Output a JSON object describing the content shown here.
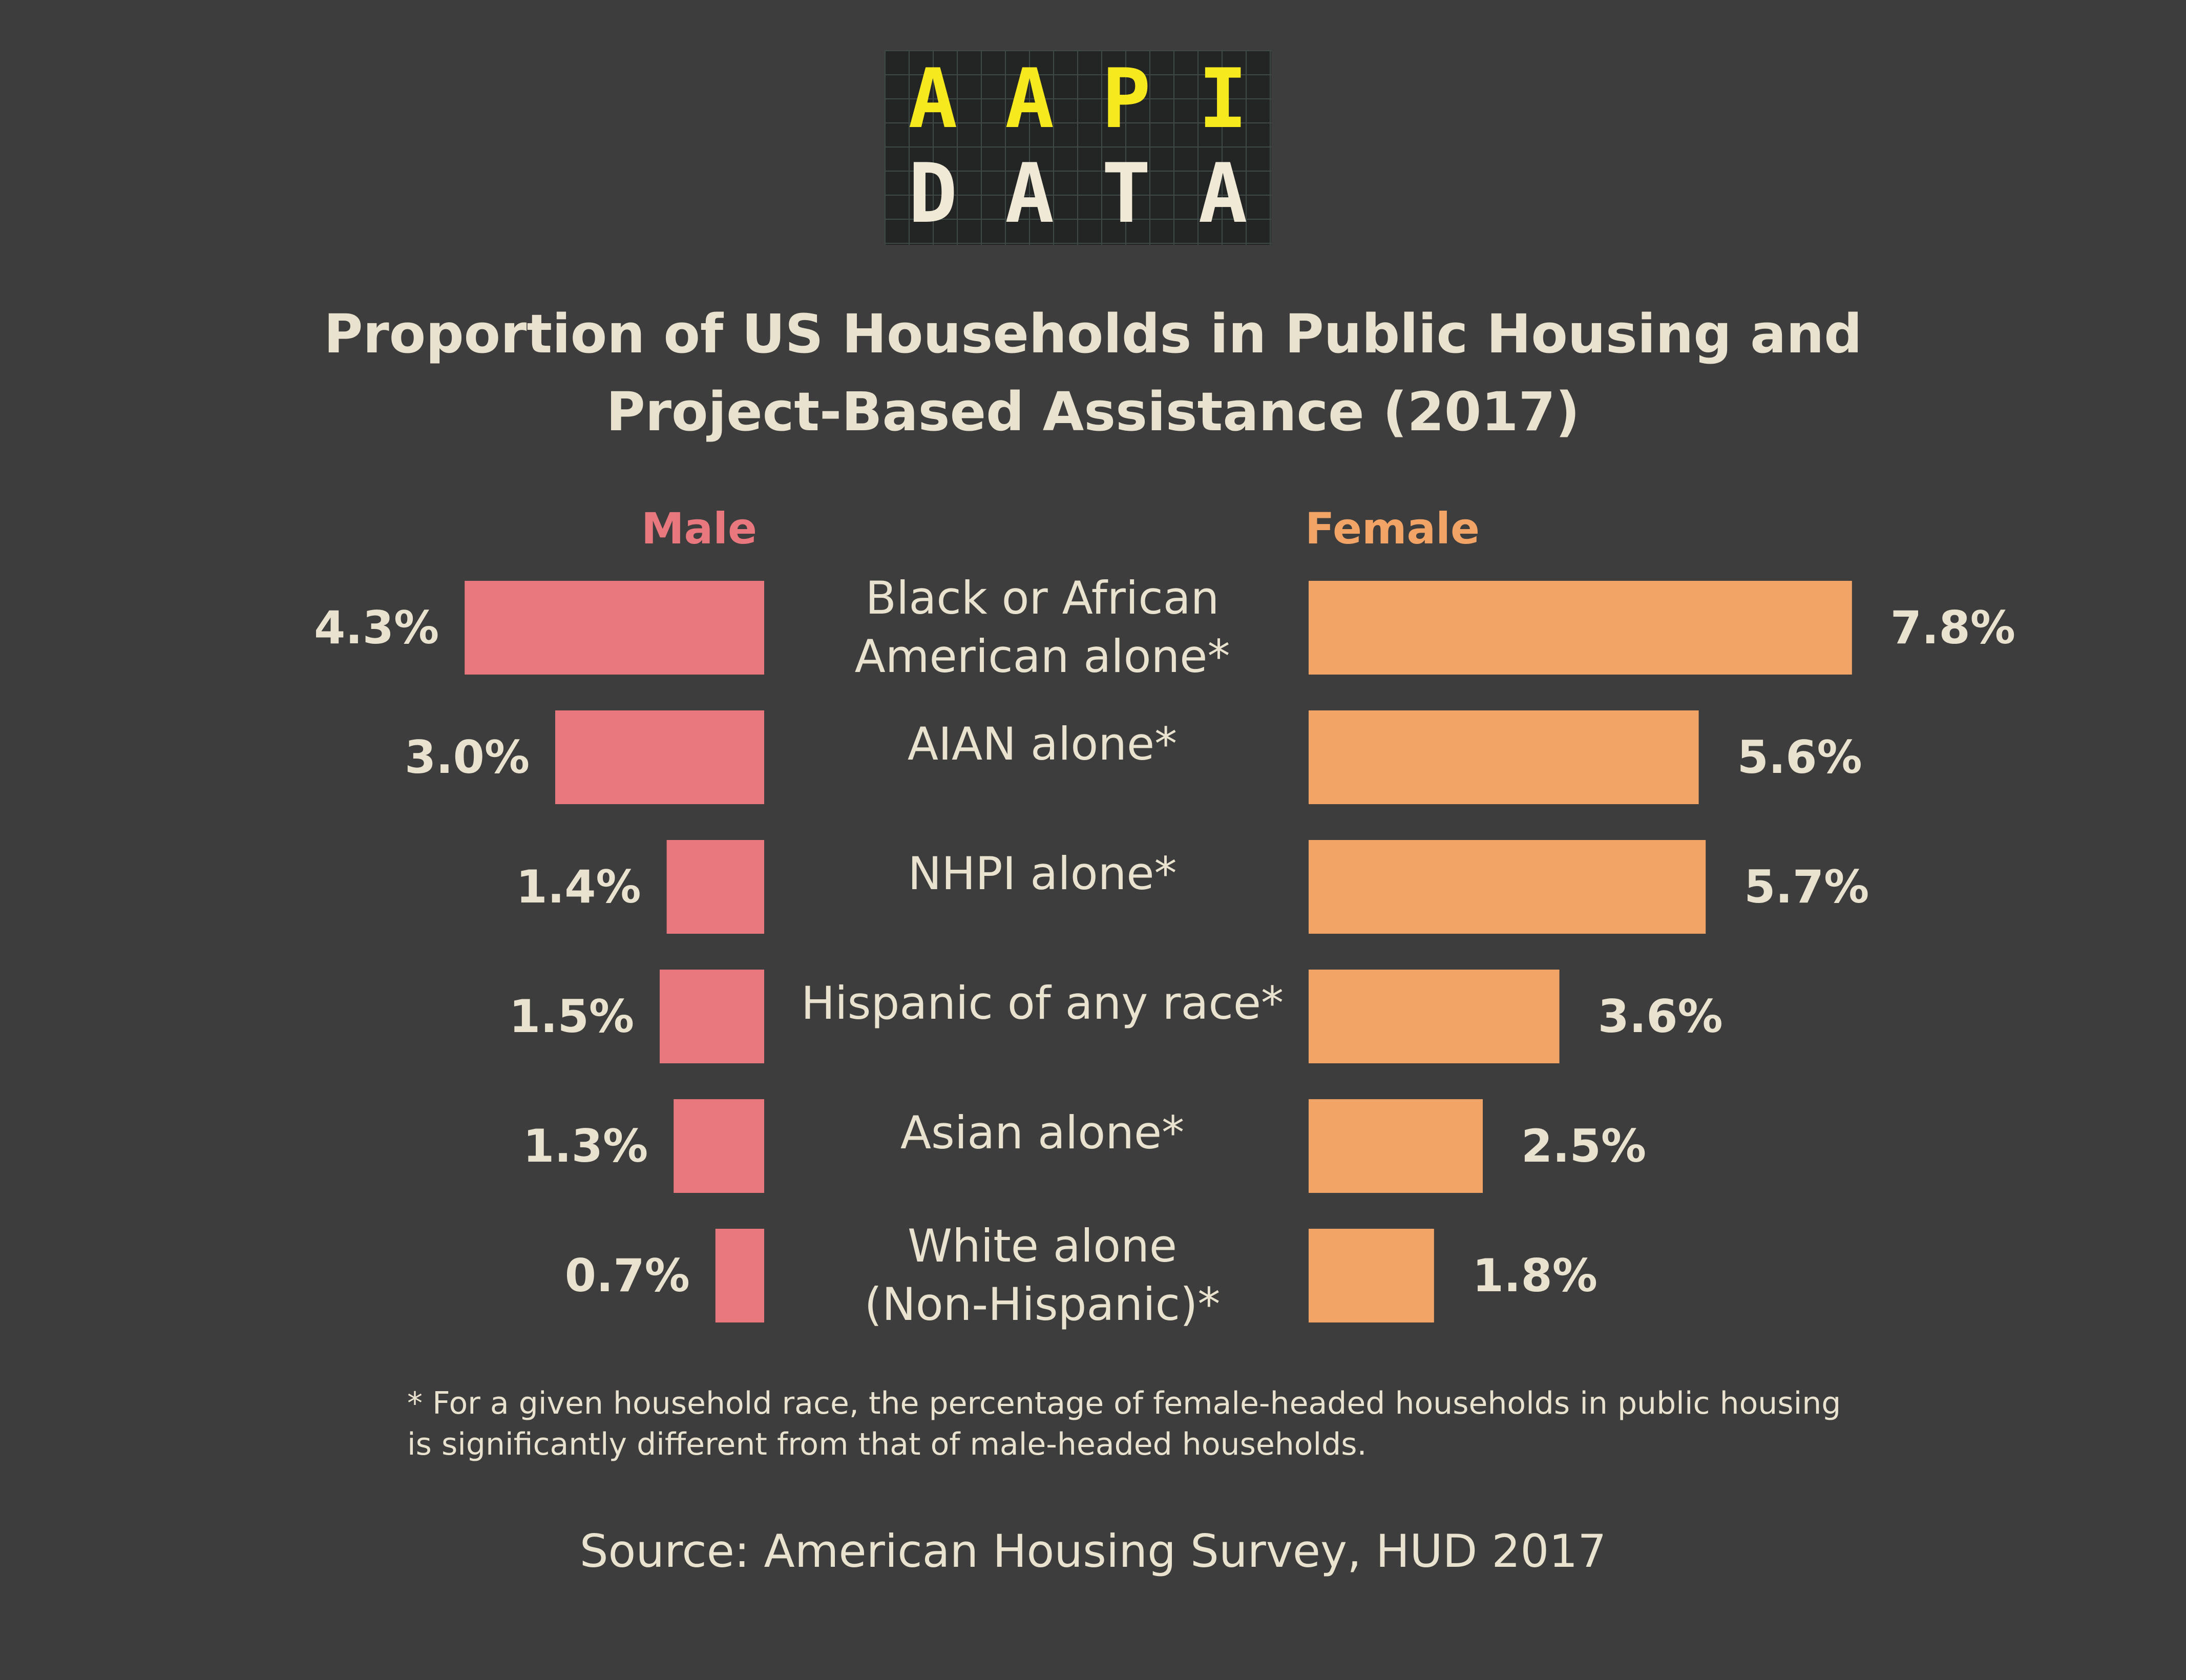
{
  "logo": {
    "line1": [
      "A",
      "A",
      "P",
      "I"
    ],
    "line2": [
      "D",
      "A",
      "T",
      "A"
    ],
    "line1_color": "#f6ea1e",
    "line2_color": "#efe9d6"
  },
  "title": {
    "line1": "Proportion of US Households in Public Housing and",
    "line2": "Project-Based Assistance (2017)"
  },
  "footnote": {
    "line1": "* For a given household race, the percentage of female-headed households in public housing",
    "line2": "is significantly different from that of male-headed households."
  },
  "source": "Source: American Housing Survey, HUD 2017",
  "colors": {
    "background": "#3e3d3d",
    "text": "#e9e2cf",
    "male": "#e8777e",
    "female": "#f2a466"
  },
  "chart_data": {
    "type": "bar",
    "orientation": "horizontal-diverging",
    "categories": [
      [
        "Black or African",
        "American alone*"
      ],
      [
        "AIAN alone*"
      ],
      [
        "NHPI alone*"
      ],
      [
        "Hispanic of any race*"
      ],
      [
        "Asian alone*"
      ],
      [
        "White alone",
        "(Non-Hispanic)*"
      ]
    ],
    "series": [
      {
        "name": "Male",
        "values": [
          4.3,
          3.0,
          1.4,
          1.5,
          1.3,
          0.7
        ],
        "labels": [
          "4.3%",
          "3.0%",
          "1.4%",
          "1.5%",
          "1.3%",
          "0.7%"
        ],
        "color": "#e8777e"
      },
      {
        "name": "Female",
        "values": [
          7.8,
          5.6,
          5.7,
          3.6,
          2.5,
          1.8
        ],
        "labels": [
          "7.8%",
          "5.6%",
          "5.7%",
          "3.6%",
          "2.5%",
          "1.8%"
        ],
        "color": "#f2a466"
      }
    ]
  }
}
